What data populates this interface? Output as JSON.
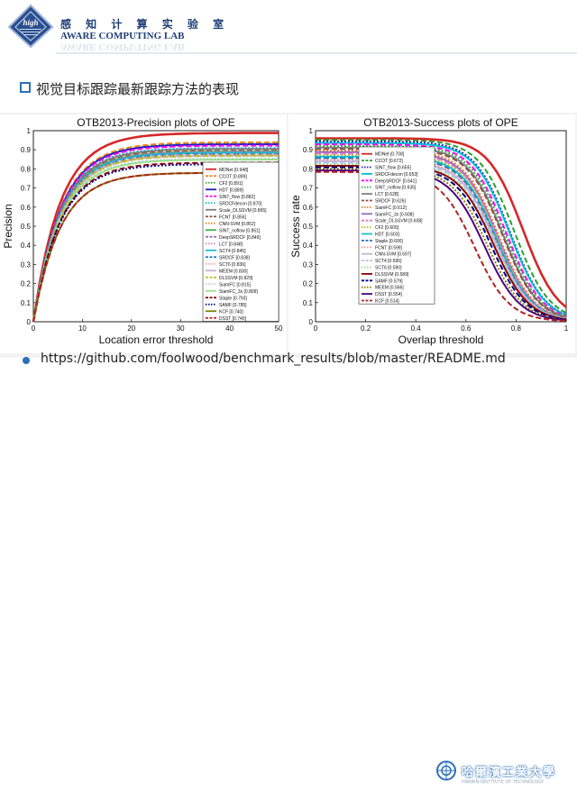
{
  "header": {
    "logo_text": "high",
    "lab_name_cn": "感 知 计 算 实 验 室",
    "lab_name_en": "AWARE COMPUTING LAB"
  },
  "slide": {
    "heading": "视觉目标跟踪最新跟踪方法的表现",
    "link": "https://github.com/foolwood/benchmark_results/blob/master/README.md"
  },
  "footer": {
    "university_cn": "哈爾濱工業大學",
    "university_en": "HARBIN INSTITUTE OF TECHNOLOGY"
  },
  "chart_data": [
    {
      "type": "line",
      "title": "OTB2013-Precision plots of OPE",
      "xlabel": "Location error threshold",
      "ylabel": "Precision",
      "xlim": [
        0,
        50
      ],
      "ylim": [
        0,
        1
      ],
      "xticks": [
        "0",
        "10",
        "20",
        "30",
        "40",
        "50"
      ],
      "yticks": [
        "0",
        "0.1",
        "0.2",
        "0.3",
        "0.4",
        "0.5",
        "0.6",
        "0.7",
        "0.8",
        "0.9",
        "1"
      ],
      "legend_position": "right",
      "series": [
        {
          "name": "MDNet [0.948]",
          "score": 0.948,
          "color": "#d62728"
        },
        {
          "name": "CCOT [0.899]",
          "score": 0.899,
          "color": "#ff7f0e"
        },
        {
          "name": "CF2 [0.891]",
          "score": 0.891,
          "color": "#2ca02c"
        },
        {
          "name": "HDT [0.889]",
          "score": 0.889,
          "color": "#1f1fbf"
        },
        {
          "name": "SINT_flow [0.882]",
          "score": 0.882,
          "color": "#ff00ff"
        },
        {
          "name": "SRDCFdecon [0.870]",
          "score": 0.87,
          "color": "#00bcd4"
        },
        {
          "name": "Scale_DLSSVM [0.865]",
          "score": 0.865,
          "color": "#7f7f7f"
        },
        {
          "name": "FCNT [0.856]",
          "score": 0.856,
          "color": "#8c564b"
        },
        {
          "name": "CNN-SVM [0.852]",
          "score": 0.852,
          "color": "#e67e22"
        },
        {
          "name": "SINT_noflow [0.851]",
          "score": 0.851,
          "color": "#3cb44b"
        },
        {
          "name": "DeepSRDCF [0.849]",
          "score": 0.849,
          "color": "#9467bd"
        },
        {
          "name": "LCT [0.848]",
          "score": 0.848,
          "color": "#e377c2"
        },
        {
          "name": "SCT4 [0.845]",
          "score": 0.845,
          "color": "#17becf"
        },
        {
          "name": "SRDCF [0.838]",
          "score": 0.838,
          "color": "#1f77b4"
        },
        {
          "name": "SCT6 [0.836]",
          "score": 0.836,
          "color": "#ff9896"
        },
        {
          "name": "MEEM [0.830]",
          "score": 0.83,
          "color": "#c5b0d5"
        },
        {
          "name": "DLSSVM [0.829]",
          "score": 0.829,
          "color": "#bcbd22"
        },
        {
          "name": "SiamFC [0.815]",
          "score": 0.815,
          "color": "#aec7e8"
        },
        {
          "name": "SiamFC_3s [0.809]",
          "score": 0.809,
          "color": "#98df8a"
        },
        {
          "name": "Staple [0.793]",
          "score": 0.793,
          "color": "#8b0000"
        },
        {
          "name": "SAMF [0.785]",
          "score": 0.785,
          "color": "#000080"
        },
        {
          "name": "KCF [0.740]",
          "score": 0.74,
          "color": "#808000"
        },
        {
          "name": "DSST [0.740]",
          "score": 0.74,
          "color": "#b22222"
        }
      ]
    },
    {
      "type": "line",
      "title": "OTB2013-Success plots of OPE",
      "xlabel": "Overlap threshold",
      "ylabel": "Success rate",
      "xlim": [
        0,
        1
      ],
      "ylim": [
        0,
        1
      ],
      "xticks": [
        "0",
        "0.2",
        "0.4",
        "0.6",
        "0.8",
        "1"
      ],
      "yticks": [
        "0",
        "0.1",
        "0.2",
        "0.3",
        "0.4",
        "0.5",
        "0.6",
        "0.7",
        "0.8",
        "0.9",
        "1"
      ],
      "legend_position": "right",
      "series": [
        {
          "name": "MDNet [0.708]",
          "score": 0.708,
          "color": "#d62728"
        },
        {
          "name": "CCOT [0.672]",
          "score": 0.672,
          "color": "#2ca02c"
        },
        {
          "name": "SINT_flow [0.655]",
          "score": 0.655,
          "color": "#1f1fbf"
        },
        {
          "name": "SRDCFdecon [0.653]",
          "score": 0.653,
          "color": "#00bcd4"
        },
        {
          "name": "DeepSRDCF [0.641]",
          "score": 0.641,
          "color": "#ff00ff"
        },
        {
          "name": "SINT_noflow [0.635]",
          "score": 0.635,
          "color": "#3cb44b"
        },
        {
          "name": "LCT [0.628]",
          "score": 0.628,
          "color": "#7f7f7f"
        },
        {
          "name": "SRDCF [0.626]",
          "score": 0.626,
          "color": "#8c564b"
        },
        {
          "name": "SiamFC [0.612]",
          "score": 0.612,
          "color": "#e67e22"
        },
        {
          "name": "SiamFC_3s [0.608]",
          "score": 0.608,
          "color": "#9467bd"
        },
        {
          "name": "Scale_DLSSVM [0.608]",
          "score": 0.608,
          "color": "#e377c2"
        },
        {
          "name": "CF2 [0.605]",
          "score": 0.605,
          "color": "#bcbd22"
        },
        {
          "name": "HDT [0.603]",
          "score": 0.603,
          "color": "#17becf"
        },
        {
          "name": "Staple [0.600]",
          "score": 0.6,
          "color": "#1f77b4"
        },
        {
          "name": "FCNT [0.599]",
          "score": 0.599,
          "color": "#ff9896"
        },
        {
          "name": "CNN-SVM [0.597]",
          "score": 0.597,
          "color": "#c5b0d5"
        },
        {
          "name": "SCT4 [0.595]",
          "score": 0.595,
          "color": "#aec7e8"
        },
        {
          "name": "SCT6 [0.590]",
          "score": 0.59,
          "color": "#98df8a"
        },
        {
          "name": "DLSSVM [0.589]",
          "score": 0.589,
          "color": "#8b0000"
        },
        {
          "name": "SAMF [0.579]",
          "score": 0.579,
          "color": "#000080"
        },
        {
          "name": "MEEM [0.566]",
          "score": 0.566,
          "color": "#808000"
        },
        {
          "name": "DSST [0.554]",
          "score": 0.554,
          "color": "#4b0082"
        },
        {
          "name": "KCF [0.514]",
          "score": 0.514,
          "color": "#b22222"
        }
      ]
    }
  ]
}
